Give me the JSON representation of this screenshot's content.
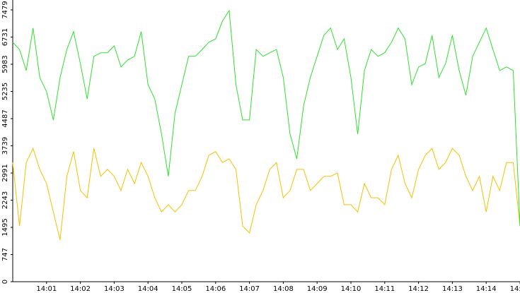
{
  "chart_data": {
    "type": "line",
    "x": [
      840,
      840.2,
      840.4,
      840.6,
      840.8,
      841,
      841.2,
      841.4,
      841.6,
      841.8,
      842,
      842.2,
      842.4,
      842.6,
      842.8,
      843,
      843.2,
      843.4,
      843.6,
      843.8,
      844,
      844.2,
      844.4,
      844.6,
      844.8,
      845,
      845.2,
      845.4,
      845.6,
      845.8,
      846,
      846.2,
      846.4,
      846.6,
      846.8,
      847,
      847.2,
      847.4,
      847.6,
      847.8,
      848,
      848.2,
      848.4,
      848.6,
      848.8,
      849,
      849.2,
      849.4,
      849.6,
      849.8,
      850,
      850.2,
      850.4,
      850.6,
      850.8,
      851,
      851.2,
      851.4,
      851.6,
      851.8,
      852,
      852.2,
      852.4,
      852.6,
      852.8,
      853,
      853.2,
      853.4,
      853.6,
      853.8,
      854,
      854.2,
      854.4,
      854.6,
      854.8,
      855
    ],
    "series": [
      {
        "color": "#2fe02f",
        "values": [
          6590,
          6390,
          5810,
          6980,
          5620,
          5230,
          4450,
          5620,
          6390,
          6880,
          6000,
          5030,
          6200,
          6300,
          6300,
          6490,
          5910,
          6100,
          6200,
          6880,
          5420,
          5030,
          4060,
          2900,
          4640,
          5420,
          6200,
          6200,
          6390,
          6590,
          6680,
          7170,
          7460,
          5420,
          4450,
          4450,
          6390,
          6200,
          6300,
          6390,
          5620,
          4060,
          3380,
          4840,
          5620,
          6200,
          6780,
          6980,
          6390,
          6680,
          5620,
          4060,
          5810,
          6390,
          6200,
          6300,
          6590,
          6980,
          6680,
          5420,
          5910,
          6000,
          6780,
          5620,
          6000,
          6780,
          5810,
          5130,
          6200,
          6590,
          6980,
          6390,
          5810,
          5910,
          5810,
          1530
        ]
      },
      {
        "color": "#f5c000",
        "values": [
          3280,
          1530,
          3280,
          3670,
          3090,
          2700,
          1920,
          1150,
          2900,
          3580,
          2510,
          2310,
          3670,
          2900,
          3090,
          2900,
          2510,
          3090,
          2700,
          3280,
          2900,
          2310,
          1920,
          2120,
          1920,
          2120,
          2510,
          2510,
          2900,
          3480,
          3580,
          3280,
          3380,
          3090,
          1530,
          1340,
          2120,
          2510,
          3090,
          3280,
          2310,
          2510,
          3090,
          3090,
          2510,
          2700,
          2900,
          2900,
          2990,
          2120,
          2120,
          1920,
          2700,
          2310,
          2310,
          2120,
          3090,
          3480,
          2700,
          2310,
          3090,
          3480,
          3670,
          3090,
          3280,
          3670,
          3480,
          2900,
          2510,
          2900,
          1920,
          2900,
          2510,
          3280,
          3280,
          1530
        ]
      }
    ],
    "xlim": [
      840,
      855
    ],
    "ylim": [
      0,
      7751
    ],
    "xticks": [
      {
        "value": 841,
        "label": "14:01"
      },
      {
        "value": 842,
        "label": "14:02"
      },
      {
        "value": 843,
        "label": "14:03"
      },
      {
        "value": 844,
        "label": "14:04"
      },
      {
        "value": 845,
        "label": "14:05"
      },
      {
        "value": 846,
        "label": "14:06"
      },
      {
        "value": 847,
        "label": "14:07"
      },
      {
        "value": 848,
        "label": "14:08"
      },
      {
        "value": 849,
        "label": "14:09"
      },
      {
        "value": 850,
        "label": "14:10"
      },
      {
        "value": 851,
        "label": "14:11"
      },
      {
        "value": 852,
        "label": "14:12"
      },
      {
        "value": 853,
        "label": "14:13"
      },
      {
        "value": 854,
        "label": "14:14"
      },
      {
        "value": 855,
        "label": "14:15"
      }
    ],
    "yticks": [
      0,
      747,
      1495,
      2243,
      2991,
      3739,
      4487,
      5235,
      5983,
      6731,
      7479
    ]
  }
}
